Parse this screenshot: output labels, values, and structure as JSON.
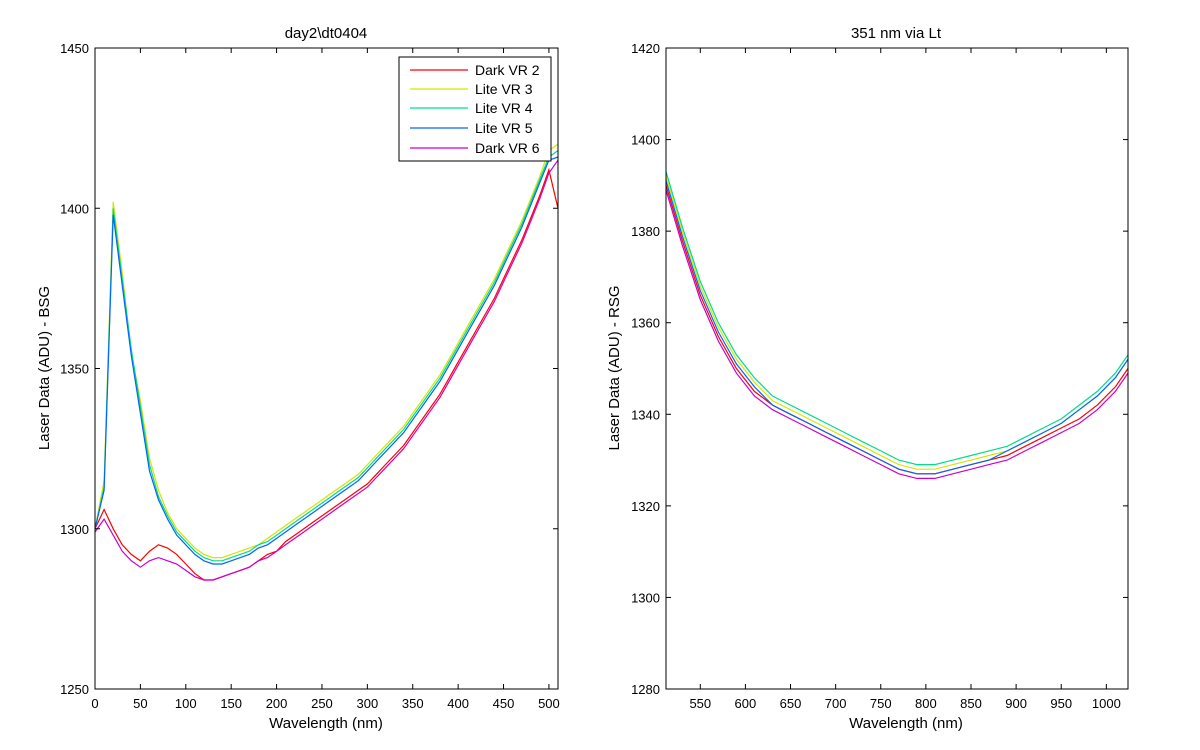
{
  "chart_data": [
    {
      "type": "line",
      "title": "day2\\dt0404",
      "xlabel": "Wavelength (nm)",
      "ylabel": "Laser Data (ADU) - BSG",
      "xlim": [
        0,
        510
      ],
      "ylim": [
        1250,
        1450
      ],
      "xticks": [
        0,
        50,
        100,
        150,
        200,
        250,
        300,
        350,
        400,
        450,
        500
      ],
      "yticks": [
        1250,
        1300,
        1350,
        1400,
        1450
      ],
      "grid": false,
      "legend": "top-right",
      "series": [
        {
          "name": "Dark VR 2",
          "color": "#ff0000",
          "x": [
            0,
            10,
            20,
            30,
            40,
            50,
            60,
            70,
            80,
            90,
            100,
            110,
            120,
            130,
            140,
            150,
            160,
            170,
            180,
            190,
            200,
            210,
            220,
            230,
            240,
            250,
            260,
            270,
            280,
            290,
            300,
            310,
            320,
            330,
            340,
            350,
            360,
            370,
            380,
            390,
            400,
            410,
            420,
            430,
            440,
            450,
            460,
            470,
            480,
            490,
            500,
            510
          ],
          "y": [
            1300,
            1306,
            1300,
            1295,
            1292,
            1290,
            1293,
            1295,
            1294,
            1292,
            1289,
            1286,
            1284,
            1284,
            1285,
            1286,
            1287,
            1288,
            1290,
            1292,
            1293,
            1296,
            1298,
            1300,
            1302,
            1304,
            1306,
            1308,
            1310,
            1312,
            1314,
            1317,
            1320,
            1323,
            1326,
            1330,
            1334,
            1338,
            1342,
            1347,
            1352,
            1357,
            1362,
            1367,
            1372,
            1378,
            1384,
            1390,
            1397,
            1404,
            1412,
            1400
          ]
        },
        {
          "name": "Lite VR 3",
          "color": "#d4e600",
          "x": [
            0,
            10,
            20,
            30,
            40,
            50,
            60,
            70,
            80,
            90,
            100,
            110,
            120,
            130,
            140,
            150,
            160,
            170,
            180,
            190,
            200,
            210,
            220,
            230,
            240,
            250,
            260,
            270,
            280,
            290,
            300,
            310,
            320,
            330,
            340,
            350,
            360,
            370,
            380,
            390,
            400,
            410,
            420,
            430,
            440,
            450,
            460,
            470,
            480,
            490,
            500,
            510
          ],
          "y": [
            1300,
            1315,
            1402,
            1380,
            1355,
            1340,
            1322,
            1312,
            1305,
            1300,
            1297,
            1294,
            1292,
            1291,
            1291,
            1292,
            1293,
            1294,
            1295,
            1297,
            1299,
            1301,
            1303,
            1305,
            1307,
            1309,
            1311,
            1313,
            1315,
            1317,
            1320,
            1323,
            1326,
            1329,
            1332,
            1336,
            1340,
            1344,
            1348,
            1353,
            1358,
            1363,
            1368,
            1373,
            1378,
            1384,
            1390,
            1396,
            1403,
            1410,
            1418,
            1420
          ]
        },
        {
          "name": "Lite VR 4",
          "color": "#00dd88",
          "x": [
            0,
            10,
            20,
            30,
            40,
            50,
            60,
            70,
            80,
            90,
            100,
            110,
            120,
            130,
            140,
            150,
            160,
            170,
            180,
            190,
            200,
            210,
            220,
            230,
            240,
            250,
            260,
            270,
            280,
            290,
            300,
            310,
            320,
            330,
            340,
            350,
            360,
            370,
            380,
            390,
            400,
            410,
            420,
            430,
            440,
            450,
            460,
            470,
            480,
            490,
            500,
            510
          ],
          "y": [
            1300,
            1313,
            1400,
            1378,
            1356,
            1338,
            1320,
            1310,
            1304,
            1299,
            1296,
            1293,
            1291,
            1290,
            1290,
            1291,
            1292,
            1293,
            1295,
            1296,
            1298,
            1300,
            1302,
            1304,
            1306,
            1308,
            1310,
            1312,
            1314,
            1316,
            1319,
            1322,
            1325,
            1328,
            1331,
            1335,
            1339,
            1343,
            1347,
            1352,
            1357,
            1362,
            1367,
            1372,
            1377,
            1383,
            1389,
            1395,
            1402,
            1409,
            1416,
            1418
          ]
        },
        {
          "name": "Lite VR 5",
          "color": "#0066ff",
          "x": [
            0,
            10,
            20,
            30,
            40,
            50,
            60,
            70,
            80,
            90,
            100,
            110,
            120,
            130,
            140,
            150,
            160,
            170,
            180,
            190,
            200,
            210,
            220,
            230,
            240,
            250,
            260,
            270,
            280,
            290,
            300,
            310,
            320,
            330,
            340,
            350,
            360,
            370,
            380,
            390,
            400,
            410,
            420,
            430,
            440,
            450,
            460,
            470,
            480,
            490,
            500,
            510
          ],
          "y": [
            1300,
            1312,
            1398,
            1376,
            1354,
            1336,
            1318,
            1309,
            1303,
            1298,
            1295,
            1292,
            1290,
            1289,
            1289,
            1290,
            1291,
            1292,
            1294,
            1295,
            1297,
            1299,
            1301,
            1303,
            1305,
            1307,
            1309,
            1311,
            1313,
            1315,
            1318,
            1321,
            1324,
            1327,
            1330,
            1334,
            1338,
            1342,
            1346,
            1351,
            1356,
            1361,
            1366,
            1371,
            1376,
            1382,
            1388,
            1394,
            1401,
            1408,
            1415,
            1416
          ]
        },
        {
          "name": "Dark VR 6",
          "color": "#cc00cc",
          "x": [
            0,
            10,
            20,
            30,
            40,
            50,
            60,
            70,
            80,
            90,
            100,
            110,
            120,
            130,
            140,
            150,
            160,
            170,
            180,
            190,
            200,
            210,
            220,
            230,
            240,
            250,
            260,
            270,
            280,
            290,
            300,
            310,
            320,
            330,
            340,
            350,
            360,
            370,
            380,
            390,
            400,
            410,
            420,
            430,
            440,
            450,
            460,
            470,
            480,
            490,
            500,
            510
          ],
          "y": [
            1299,
            1303,
            1298,
            1293,
            1290,
            1288,
            1290,
            1291,
            1290,
            1289,
            1287,
            1285,
            1284,
            1284,
            1285,
            1286,
            1287,
            1288,
            1290,
            1291,
            1293,
            1295,
            1297,
            1299,
            1301,
            1303,
            1305,
            1307,
            1309,
            1311,
            1313,
            1316,
            1319,
            1322,
            1325,
            1329,
            1333,
            1337,
            1341,
            1346,
            1351,
            1356,
            1361,
            1366,
            1371,
            1377,
            1383,
            1389,
            1396,
            1403,
            1411,
            1415
          ]
        }
      ]
    },
    {
      "type": "line",
      "title": "351 nm via Lt",
      "xlabel": "Wavelength (nm)",
      "ylabel": "Laser Data (ADU) - RSG",
      "xlim": [
        512,
        1024
      ],
      "ylim": [
        1280,
        1420
      ],
      "xticks": [
        550,
        600,
        650,
        700,
        750,
        800,
        850,
        900,
        950,
        1000
      ],
      "yticks": [
        1280,
        1300,
        1320,
        1340,
        1360,
        1380,
        1400,
        1420
      ],
      "grid": false,
      "series": [
        {
          "name": "Dark VR 2",
          "color": "#ff0000",
          "x": [
            512,
            530,
            550,
            570,
            590,
            610,
            630,
            650,
            670,
            690,
            710,
            730,
            750,
            770,
            790,
            810,
            830,
            850,
            870,
            890,
            910,
            930,
            950,
            970,
            990,
            1010,
            1024
          ],
          "y": [
            1390,
            1378,
            1366,
            1357,
            1350,
            1345,
            1342,
            1340,
            1338,
            1336,
            1334,
            1332,
            1330,
            1328,
            1327,
            1327,
            1328,
            1329,
            1330,
            1331,
            1333,
            1335,
            1337,
            1339,
            1342,
            1346,
            1350
          ]
        },
        {
          "name": "Lite VR 3",
          "color": "#d4e600",
          "x": [
            512,
            530,
            550,
            570,
            590,
            610,
            630,
            650,
            670,
            690,
            710,
            730,
            750,
            770,
            790,
            810,
            830,
            850,
            870,
            890,
            910,
            930,
            950,
            970,
            990,
            1010,
            1024
          ],
          "y": [
            1392,
            1380,
            1368,
            1359,
            1352,
            1347,
            1343,
            1341,
            1339,
            1337,
            1335,
            1333,
            1331,
            1329,
            1328,
            1328,
            1329,
            1330,
            1331,
            1332,
            1334,
            1336,
            1338,
            1341,
            1344,
            1348,
            1352
          ]
        },
        {
          "name": "Lite VR 4",
          "color": "#00dd88",
          "x": [
            512,
            530,
            550,
            570,
            590,
            610,
            630,
            650,
            670,
            690,
            710,
            730,
            750,
            770,
            790,
            810,
            830,
            850,
            870,
            890,
            910,
            930,
            950,
            970,
            990,
            1010,
            1024
          ],
          "y": [
            1393,
            1381,
            1369,
            1360,
            1353,
            1348,
            1344,
            1342,
            1340,
            1338,
            1336,
            1334,
            1332,
            1330,
            1329,
            1329,
            1330,
            1331,
            1332,
            1333,
            1335,
            1337,
            1339,
            1342,
            1345,
            1349,
            1353
          ]
        },
        {
          "name": "Lite VR 5",
          "color": "#0066ff",
          "x": [
            512,
            530,
            550,
            570,
            590,
            610,
            630,
            650,
            670,
            690,
            710,
            730,
            750,
            770,
            790,
            810,
            830,
            850,
            870,
            890,
            910,
            930,
            950,
            970,
            990,
            1010,
            1024
          ],
          "y": [
            1391,
            1379,
            1367,
            1358,
            1351,
            1346,
            1342,
            1340,
            1338,
            1336,
            1334,
            1332,
            1330,
            1328,
            1327,
            1327,
            1328,
            1329,
            1330,
            1332,
            1334,
            1336,
            1338,
            1341,
            1344,
            1348,
            1352
          ]
        },
        {
          "name": "Dark VR 6",
          "color": "#cc00cc",
          "x": [
            512,
            530,
            550,
            570,
            590,
            610,
            630,
            650,
            670,
            690,
            710,
            730,
            750,
            770,
            790,
            810,
            830,
            850,
            870,
            890,
            910,
            930,
            950,
            970,
            990,
            1010,
            1024
          ],
          "y": [
            1389,
            1377,
            1365,
            1356,
            1349,
            1344,
            1341,
            1339,
            1337,
            1335,
            1333,
            1331,
            1329,
            1327,
            1326,
            1326,
            1327,
            1328,
            1329,
            1330,
            1332,
            1334,
            1336,
            1338,
            1341,
            1345,
            1349
          ]
        }
      ]
    }
  ]
}
